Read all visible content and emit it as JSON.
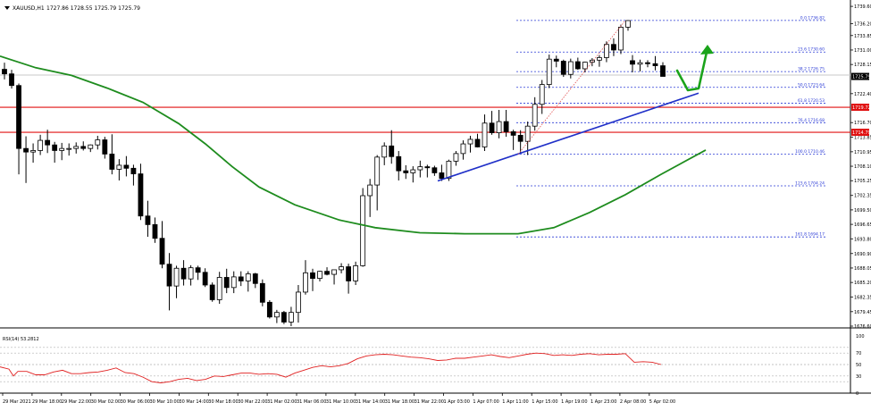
{
  "header": {
    "symbol_label": "XAUUSD,H1",
    "ohlc_label": "1727.86 1728.55 1725.79 1725.79"
  },
  "colors": {
    "background": "#ffffff",
    "grid": "#c8c8c8",
    "candle_bull": "#ffffff",
    "candle_bear": "#000000",
    "candle_outline": "#000000",
    "moving_average": "#1e8c1e",
    "support_line": "#2030c8",
    "resistance_line": "#e01010",
    "fib_line": "#2b3bd6",
    "trendline_dotted": "#e05050",
    "arrow": "#1aa31a",
    "rsi_line": "#e02020",
    "rsi_level": "#b0b0b0",
    "price_tag_red": "#e01010",
    "price_tag_current": "#000000"
  },
  "chart_data": [
    {
      "type": "candlestick",
      "symbol": "XAUUSD",
      "timeframe": "H1",
      "price_scale": [
        "1739.60",
        "1736.20",
        "1733.85",
        "1731.00",
        "1728.15",
        "1725.79",
        "1722.40",
        "1719.72",
        "1716.70",
        "1714.79",
        "1713.85",
        "1710.95",
        "1708.10",
        "1705.25",
        "1702.35",
        "1699.50",
        "1696.65",
        "1693.80",
        "1690.90",
        "1688.05",
        "1685.20",
        "1682.35",
        "1679.45",
        "1676.60"
      ],
      "time_labels": [
        "29 Mar 2021",
        "29 Mar 18:00",
        "29 Mar 22:00",
        "30 Mar 02:00",
        "30 Mar 06:00",
        "30 Mar 10:00",
        "30 Mar 14:00",
        "30 Mar 18:00",
        "30 Mar 22:00",
        "31 Mar 02:00",
        "31 Mar 06:00",
        "31 Mar 10:00",
        "31 Mar 14:00",
        "31 Mar 18:00",
        "31 Mar 22:00",
        "1 Apr 03:00",
        "1 Apr 07:00",
        "1 Apr 11:00",
        "1 Apr 15:00",
        "1 Apr 19:00",
        "1 Apr 23:00",
        "2 Apr 08:00",
        "5 Apr 02:00"
      ],
      "ylim": [
        1676.6,
        1740.5
      ],
      "candles": [
        [
          1727.2,
          1728.5,
          1725.2,
          1726.3
        ],
        [
          1726.3,
          1727.1,
          1723.4,
          1724.0
        ],
        [
          1724.0,
          1724.4,
          1706.5,
          1711.6
        ],
        [
          1711.6,
          1714.0,
          1704.8,
          1710.9
        ],
        [
          1710.9,
          1712.6,
          1708.8,
          1711.2
        ],
        [
          1711.2,
          1714.3,
          1710.3,
          1713.2
        ],
        [
          1713.2,
          1715.3,
          1710.7,
          1712.3
        ],
        [
          1712.3,
          1712.9,
          1708.8,
          1711.2
        ],
        [
          1711.2,
          1712.7,
          1709.3,
          1711.6
        ],
        [
          1711.6,
          1712.6,
          1710.2,
          1711.6
        ],
        [
          1711.6,
          1712.8,
          1710.6,
          1712.0
        ],
        [
          1712.0,
          1713.0,
          1711.2,
          1711.6
        ],
        [
          1711.6,
          1712.4,
          1710.9,
          1712.3
        ],
        [
          1712.3,
          1714.1,
          1711.4,
          1713.3
        ],
        [
          1713.3,
          1713.9,
          1709.6,
          1710.5
        ],
        [
          1710.5,
          1714.4,
          1706.5,
          1707.5
        ],
        [
          1707.5,
          1709.5,
          1705.3,
          1708.3
        ],
        [
          1708.3,
          1710.1,
          1706.1,
          1707.7
        ],
        [
          1707.7,
          1708.4,
          1704.3,
          1706.6
        ],
        [
          1706.6,
          1708.6,
          1697.5,
          1698.3
        ],
        [
          1698.3,
          1701.3,
          1694.2,
          1696.6
        ],
        [
          1696.6,
          1698.0,
          1693.0,
          1693.9
        ],
        [
          1693.9,
          1697.3,
          1688.0,
          1688.8
        ],
        [
          1688.8,
          1691.0,
          1679.7,
          1684.5
        ],
        [
          1684.5,
          1688.5,
          1682.1,
          1688.0
        ],
        [
          1688.0,
          1689.6,
          1684.6,
          1685.9
        ],
        [
          1685.9,
          1688.6,
          1684.6,
          1688.1
        ],
        [
          1688.1,
          1688.5,
          1685.7,
          1687.2
        ],
        [
          1687.2,
          1688.0,
          1684.3,
          1684.7
        ],
        [
          1684.7,
          1685.2,
          1681.4,
          1681.8
        ],
        [
          1681.8,
          1687.3,
          1681.0,
          1686.2
        ],
        [
          1686.2,
          1687.9,
          1683.1,
          1684.2
        ],
        [
          1684.2,
          1687.4,
          1683.1,
          1686.3
        ],
        [
          1686.3,
          1687.4,
          1684.5,
          1685.5
        ],
        [
          1685.5,
          1687.4,
          1683.4,
          1686.9
        ],
        [
          1686.9,
          1687.1,
          1684.1,
          1685.0
        ],
        [
          1685.0,
          1685.8,
          1680.5,
          1681.3
        ],
        [
          1681.3,
          1681.7,
          1678.1,
          1678.4
        ],
        [
          1678.4,
          1679.8,
          1677.2,
          1679.3
        ],
        [
          1679.3,
          1679.6,
          1677.0,
          1677.4
        ],
        [
          1677.4,
          1680.4,
          1676.6,
          1679.3
        ],
        [
          1679.3,
          1684.7,
          1677.3,
          1683.3
        ],
        [
          1683.3,
          1689.6,
          1682.8,
          1687.1
        ],
        [
          1687.1,
          1687.9,
          1683.5,
          1686.0
        ],
        [
          1686.0,
          1687.5,
          1685.4,
          1687.4
        ],
        [
          1687.4,
          1688.2,
          1686.6,
          1686.8
        ],
        [
          1686.8,
          1687.7,
          1684.8,
          1687.7
        ],
        [
          1687.7,
          1689.0,
          1687.0,
          1688.3
        ],
        [
          1688.3,
          1688.9,
          1683.0,
          1685.5
        ],
        [
          1685.5,
          1689.3,
          1684.7,
          1688.5
        ],
        [
          1688.5,
          1703.8,
          1688.3,
          1702.3
        ],
        [
          1702.3,
          1705.6,
          1698.1,
          1704.4
        ],
        [
          1704.4,
          1710.3,
          1699.4,
          1709.9
        ],
        [
          1709.9,
          1712.8,
          1708.3,
          1712.1
        ],
        [
          1712.1,
          1715.2,
          1708.6,
          1710.0
        ],
        [
          1710.0,
          1711.1,
          1705.3,
          1707.2
        ],
        [
          1707.2,
          1708.3,
          1705.6,
          1706.8
        ],
        [
          1706.8,
          1708.1,
          1704.9,
          1707.4
        ],
        [
          1707.4,
          1709.2,
          1705.9,
          1708.0
        ],
        [
          1708.0,
          1708.4,
          1705.9,
          1707.8
        ],
        [
          1707.8,
          1708.2,
          1706.2,
          1706.8
        ],
        [
          1706.8,
          1708.4,
          1705.2,
          1705.7
        ],
        [
          1705.7,
          1709.4,
          1705.2,
          1709.1
        ],
        [
          1709.1,
          1711.1,
          1708.2,
          1710.6
        ],
        [
          1710.6,
          1713.2,
          1709.4,
          1712.5
        ],
        [
          1712.5,
          1714.1,
          1710.8,
          1713.4
        ],
        [
          1713.4,
          1714.5,
          1711.8,
          1711.9
        ],
        [
          1711.9,
          1718.3,
          1711.1,
          1716.6
        ],
        [
          1716.6,
          1719.0,
          1714.3,
          1714.7
        ],
        [
          1714.7,
          1719.2,
          1713.6,
          1716.9
        ],
        [
          1716.9,
          1719.2,
          1713.9,
          1714.9
        ],
        [
          1714.9,
          1715.3,
          1711.3,
          1714.2
        ],
        [
          1714.2,
          1715.2,
          1710.6,
          1713.0
        ],
        [
          1713.0,
          1716.9,
          1710.3,
          1716.0
        ],
        [
          1716.0,
          1721.7,
          1715.1,
          1720.3
        ],
        [
          1720.3,
          1725.1,
          1718.4,
          1724.2
        ],
        [
          1724.2,
          1730.1,
          1723.5,
          1729.2
        ],
        [
          1729.2,
          1729.9,
          1727.6,
          1728.8
        ],
        [
          1728.8,
          1729.1,
          1725.7,
          1726.2
        ],
        [
          1726.2,
          1729.3,
          1725.4,
          1728.7
        ],
        [
          1728.7,
          1729.5,
          1727.1,
          1727.3
        ],
        [
          1727.3,
          1728.7,
          1726.6,
          1728.6
        ],
        [
          1728.6,
          1729.4,
          1727.8,
          1729.0
        ],
        [
          1729.0,
          1730.0,
          1727.7,
          1729.5
        ],
        [
          1729.5,
          1732.7,
          1728.6,
          1732.1
        ],
        [
          1732.1,
          1733.3,
          1729.8,
          1731.0
        ],
        [
          1731.0,
          1736.0,
          1730.2,
          1735.5
        ],
        [
          1735.5,
          1736.8,
          1734.8,
          1736.8
        ],
        [
          1728.9,
          1730.0,
          1726.6,
          1728.2
        ],
        [
          1728.2,
          1729.1,
          1726.8,
          1728.5
        ],
        [
          1728.5,
          1729.0,
          1727.6,
          1728.3
        ],
        [
          1728.3,
          1729.8,
          1727.0,
          1727.9
        ],
        [
          1727.9,
          1728.6,
          1725.8,
          1725.8
        ]
      ]
    },
    {
      "type": "line",
      "series": [
        {
          "values": [
            [
              0,
              1729.8
            ],
            [
              40,
              1727.5
            ],
            [
              80,
              1726.0
            ],
            [
              120,
              1723.5
            ],
            [
              160,
              1720.7
            ],
            [
              200,
              1716.5
            ],
            [
              230,
              1712.5
            ],
            [
              260,
              1708.0
            ],
            [
              290,
              1704.0
            ],
            [
              330,
              1700.5
            ],
            [
              380,
              1697.5
            ],
            [
              420,
              1696.0
            ],
            [
              470,
              1695.0
            ],
            [
              520,
              1694.8
            ],
            [
              580,
              1694.8
            ],
            [
              620,
              1696.0
            ],
            [
              660,
              1699.0
            ],
            [
              700,
              1702.5
            ],
            [
              740,
              1706.5
            ],
            [
              790,
              1711.3
            ]
          ]
        }
      ]
    },
    {
      "type": "line",
      "title": "RSI(14) 53.2812",
      "ylim": [
        0,
        100
      ],
      "levels": [
        80,
        70,
        50,
        30,
        20
      ],
      "y_ticks": [
        "100",
        "70",
        "50",
        "30",
        "0"
      ],
      "values": [
        [
          0,
          46
        ],
        [
          10,
          42
        ],
        [
          15,
          30
        ],
        [
          20,
          38
        ],
        [
          30,
          38
        ],
        [
          40,
          32
        ],
        [
          50,
          32
        ],
        [
          60,
          37
        ],
        [
          70,
          40
        ],
        [
          80,
          34
        ],
        [
          90,
          34
        ],
        [
          100,
          36
        ],
        [
          110,
          37
        ],
        [
          120,
          40
        ],
        [
          130,
          44
        ],
        [
          140,
          36
        ],
        [
          150,
          34
        ],
        [
          160,
          28
        ],
        [
          170,
          20
        ],
        [
          180,
          18
        ],
        [
          190,
          20
        ],
        [
          200,
          24
        ],
        [
          210,
          26
        ],
        [
          220,
          22
        ],
        [
          230,
          24
        ],
        [
          240,
          30
        ],
        [
          250,
          29
        ],
        [
          260,
          32
        ],
        [
          270,
          35
        ],
        [
          280,
          35
        ],
        [
          290,
          33
        ],
        [
          300,
          34
        ],
        [
          310,
          33
        ],
        [
          320,
          28
        ],
        [
          330,
          35
        ],
        [
          340,
          40
        ],
        [
          350,
          45
        ],
        [
          360,
          48
        ],
        [
          370,
          46
        ],
        [
          380,
          48
        ],
        [
          390,
          52
        ],
        [
          400,
          60
        ],
        [
          410,
          65
        ],
        [
          420,
          67
        ],
        [
          430,
          68
        ],
        [
          440,
          67
        ],
        [
          450,
          65
        ],
        [
          460,
          63
        ],
        [
          470,
          62
        ],
        [
          480,
          60
        ],
        [
          490,
          57
        ],
        [
          500,
          58
        ],
        [
          510,
          61
        ],
        [
          520,
          61
        ],
        [
          530,
          63
        ],
        [
          540,
          65
        ],
        [
          550,
          67
        ],
        [
          560,
          64
        ],
        [
          570,
          62
        ],
        [
          580,
          65
        ],
        [
          590,
          68
        ],
        [
          600,
          70
        ],
        [
          610,
          69
        ],
        [
          620,
          66
        ],
        [
          630,
          67
        ],
        [
          640,
          66
        ],
        [
          650,
          68
        ],
        [
          660,
          69
        ],
        [
          670,
          67
        ],
        [
          680,
          68
        ],
        [
          690,
          68
        ],
        [
          700,
          69
        ],
        [
          710,
          54
        ],
        [
          720,
          55
        ],
        [
          730,
          54
        ],
        [
          740,
          50
        ]
      ]
    }
  ],
  "overlays": {
    "support_price_range": [
      1705.2,
      1722.5
    ],
    "resistance_levels": [
      "1719.72",
      "1714.79"
    ],
    "resistance_values": [
      1719.72,
      1714.79
    ],
    "current_price": "1725.79",
    "current_price_value": 1725.79,
    "fibonacci": [
      {
        "label": "0.0 1736.82",
        "price": 1736.82
      },
      {
        "label": "23.6 1730.60",
        "price": 1730.6
      },
      {
        "label": "38.2 1726.75",
        "price": 1726.75
      },
      {
        "label": "50.0 1723.64",
        "price": 1723.64
      },
      {
        "label": "61.8 1720.53",
        "price": 1720.53
      },
      {
        "label": "76.4 1716.68",
        "price": 1716.68
      },
      {
        "label": "100.0 1710.46",
        "price": 1710.46
      },
      {
        "label": "123.6 1704.24",
        "price": 1704.24
      },
      {
        "label": "161.8 1694.17",
        "price": 1694.17
      }
    ]
  }
}
